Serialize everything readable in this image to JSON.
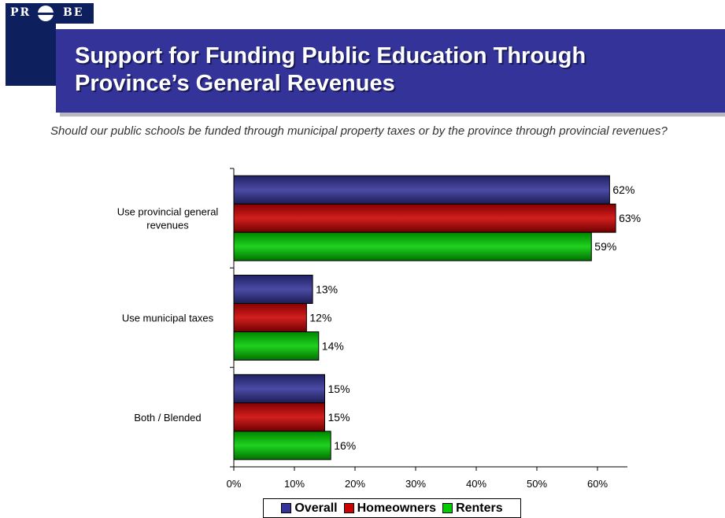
{
  "logo": {
    "left": "PR",
    "right": "BE",
    "full": "PROBE"
  },
  "header": {
    "title": "Support for Funding Public Education Through\nProvince’s General Revenues"
  },
  "question": "Should our public schools be funded through municipal property taxes or by the province through provincial revenues?",
  "chart_data": {
    "type": "bar",
    "orientation": "horizontal",
    "title": "",
    "xlabel": "",
    "ylabel": "",
    "categories": [
      "Use provincial general revenues",
      "Use municipal taxes",
      "Both / Blended"
    ],
    "series": [
      {
        "name": "Overall",
        "color": "#333399",
        "values": [
          62,
          13,
          15
        ]
      },
      {
        "name": "Homeowners",
        "color": "#cc0000",
        "values": [
          63,
          12,
          15
        ]
      },
      {
        "name": "Renters",
        "color": "#00cc00",
        "values": [
          59,
          14,
          16
        ]
      }
    ],
    "xlim": [
      0,
      65
    ],
    "xticks": [
      0,
      10,
      20,
      30,
      40,
      50,
      60
    ],
    "tick_suffix": "%",
    "data_label_suffix": "%",
    "grid": false,
    "legend_position": "bottom"
  }
}
